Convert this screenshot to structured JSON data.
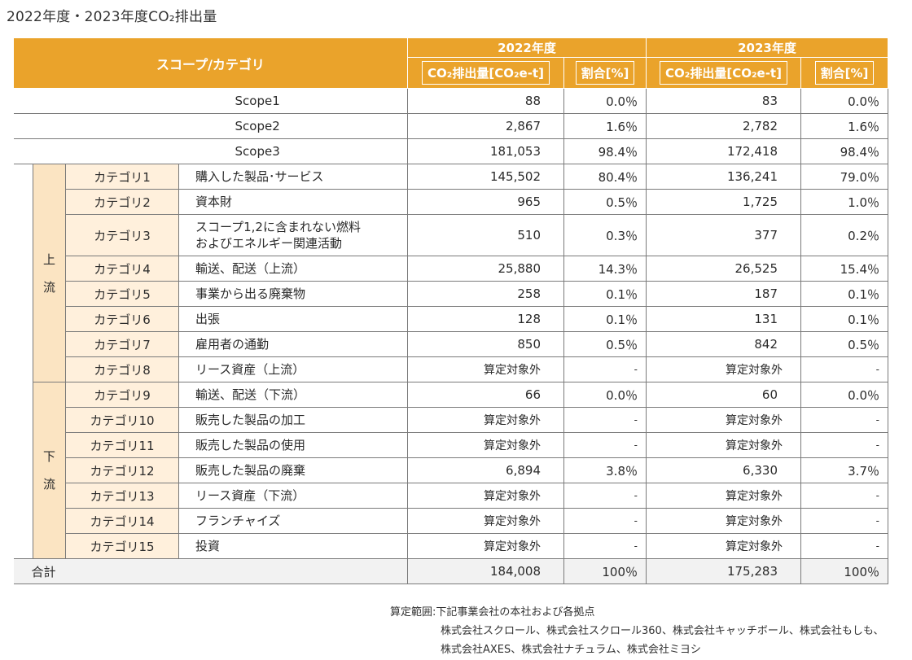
{
  "title": "2022年度・2023年度CO₂排出量",
  "header": {
    "scope_category": "スコープ/カテゴリ",
    "year_2022": "2022年度",
    "year_2023": "2023年度",
    "emissions_col": "CO₂排出量[CO₂e-t]",
    "ratio_col": "割合[%]"
  },
  "scopes": [
    {
      "label": "Scope1",
      "v2022": "88",
      "p2022": "0.0％",
      "v2023": "83",
      "p2023": "0.0％"
    },
    {
      "label": "Scope2",
      "v2022": "2,867",
      "p2022": "1.6％",
      "v2023": "2,782",
      "p2023": "1.6％"
    },
    {
      "label": "Scope3",
      "v2022": "181,053",
      "p2022": "98.4％",
      "v2023": "172,418",
      "p2023": "98.4％"
    }
  ],
  "upstream_label": "上\n流",
  "downstream_label": "下\n流",
  "upstream_label_top": "上",
  "upstream_label_bottom": "流",
  "downstream_label_top": "下",
  "downstream_label_bottom": "流",
  "categories": [
    {
      "cat": "カテゴリ1",
      "desc": "購入した製品･サービス",
      "v2022": "145,502",
      "p2022": "80.4％",
      "v2023": "136,241",
      "p2023": "79.0％"
    },
    {
      "cat": "カテゴリ2",
      "desc": "資本財",
      "v2022": "965",
      "p2022": "0.5％",
      "v2023": "1,725",
      "p2023": "1.0％"
    },
    {
      "cat": "カテゴリ3",
      "desc": "スコープ1,2に含まれない燃料",
      "desc2": "およびエネルギー関連活動",
      "v2022": "510",
      "p2022": "0.3％",
      "v2023": "377",
      "p2023": "0.2％"
    },
    {
      "cat": "カテゴリ4",
      "desc": "輸送、配送（上流）",
      "v2022": "25,880",
      "p2022": "14.3％",
      "v2023": "26,525",
      "p2023": "15.4％"
    },
    {
      "cat": "カテゴリ5",
      "desc": "事業から出る廃棄物",
      "v2022": "258",
      "p2022": "0.1％",
      "v2023": "187",
      "p2023": "0.1％"
    },
    {
      "cat": "カテゴリ6",
      "desc": "出張",
      "v2022": "128",
      "p2022": "0.1％",
      "v2023": "131",
      "p2023": "0.1％"
    },
    {
      "cat": "カテゴリ7",
      "desc": "雇用者の通勤",
      "v2022": "850",
      "p2022": "0.5％",
      "v2023": "842",
      "p2023": "0.5％"
    },
    {
      "cat": "カテゴリ8",
      "desc": "リース資産（上流）",
      "v2022": "算定対象外",
      "p2022": "-",
      "v2023": "算定対象外",
      "p2023": "-"
    },
    {
      "cat": "カテゴリ9",
      "desc": "輸送、配送（下流）",
      "v2022": "66",
      "p2022": "0.0％",
      "v2023": "60",
      "p2023": "0.0％"
    },
    {
      "cat": "カテゴリ10",
      "desc": "販売した製品の加工",
      "v2022": "算定対象外",
      "p2022": "-",
      "v2023": "算定対象外",
      "p2023": "-"
    },
    {
      "cat": "カテゴリ11",
      "desc": "販売した製品の使用",
      "v2022": "算定対象外",
      "p2022": "-",
      "v2023": "算定対象外",
      "p2023": "-"
    },
    {
      "cat": "カテゴリ12",
      "desc": "販売した製品の廃棄",
      "v2022": "6,894",
      "p2022": "3.8％",
      "v2023": "6,330",
      "p2023": "3.7％"
    },
    {
      "cat": "カテゴリ13",
      "desc": "リース資産（下流）",
      "v2022": "算定対象外",
      "p2022": "-",
      "v2023": "算定対象外",
      "p2023": "-"
    },
    {
      "cat": "カテゴリ14",
      "desc": "フランチャイズ",
      "v2022": "算定対象外",
      "p2022": "-",
      "v2023": "算定対象外",
      "p2023": "-"
    },
    {
      "cat": "カテゴリ15",
      "desc": "投資",
      "v2022": "算定対象外",
      "p2022": "-",
      "v2023": "算定対象外",
      "p2023": "-"
    }
  ],
  "total": {
    "label": "合計",
    "v2022": "184,008",
    "p2022": "100％",
    "v2023": "175,283",
    "p2023": "100％"
  },
  "note": {
    "line1": "算定範囲:下記事業会社の本社および各拠点",
    "line2": "株式会社スクロール、株式会社スクロール360、株式会社キャッチボール、株式会社もしも、",
    "line3": "株式会社AXES、株式会社ナチュラム、株式会社ミヨシ"
  }
}
